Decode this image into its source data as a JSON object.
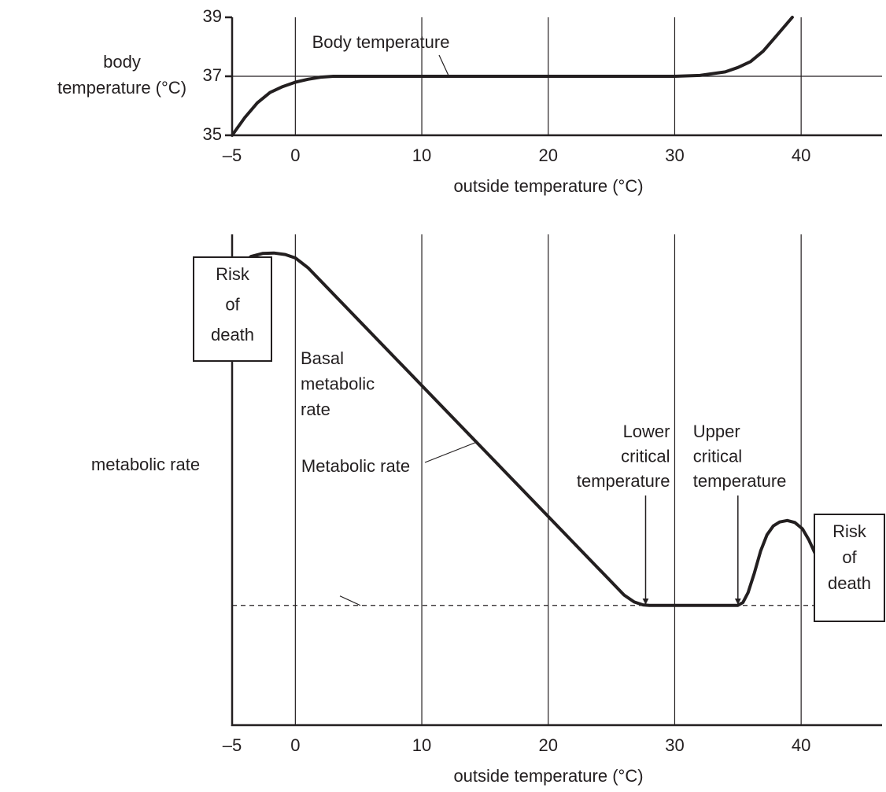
{
  "chart_data": [
    {
      "type": "line",
      "ylabel": [
        "body",
        "temperature (°C)"
      ],
      "xlabel": "outside temperature (°C)",
      "xlim": [
        -5,
        46.4
      ],
      "ylim": [
        35,
        39
      ],
      "xticks": [
        {
          "value": -5,
          "label": "–5"
        },
        0,
        10,
        20,
        30,
        40
      ],
      "yticks": [
        35,
        37,
        39
      ],
      "grid": true,
      "series": [
        {
          "name": "Body temperature",
          "color": "#231f20",
          "x": [
            -5,
            -4,
            -3,
            -2,
            -1,
            0,
            1,
            2,
            3,
            30,
            32,
            34,
            35,
            36,
            37,
            38,
            39.3
          ],
          "values": [
            35,
            35.6,
            36.1,
            36.45,
            36.65,
            36.8,
            36.9,
            36.97,
            37,
            37,
            37.03,
            37.15,
            37.3,
            37.5,
            37.85,
            38.35,
            39
          ]
        }
      ]
    },
    {
      "type": "line",
      "ylabel": "metabolic rate",
      "xlabel": "outside temperature (°C)",
      "xlim": [
        -5,
        46.4
      ],
      "ylim": [
        0,
        100
      ],
      "xticks": [
        {
          "value": -5,
          "label": "–5"
        },
        0,
        10,
        20,
        30,
        40
      ],
      "grid": true,
      "series": [
        {
          "name": "Metabolic rate",
          "color": "#231f20",
          "x": [
            -5,
            -4.2,
            -3.5,
            -2.6,
            -1.7,
            -0.8,
            0,
            1,
            26,
            26.8,
            27.5,
            28,
            35,
            35.4,
            35.8,
            36.3,
            36.8,
            37.3,
            37.8,
            38.3,
            38.9,
            39.5,
            40.1,
            40.6,
            41.1
          ],
          "values": [
            91.7,
            94,
            95.5,
            96.1,
            96.2,
            95.9,
            95.2,
            93.2,
            26.5,
            25.1,
            24.5,
            24.4,
            24.4,
            25,
            27,
            31,
            35.5,
            38.8,
            40.6,
            41.4,
            41.7,
            41.3,
            40,
            37.8,
            35
          ]
        }
      ],
      "basal": {
        "label": [
          "Basal",
          "metabolic",
          "rate"
        ],
        "value": 24.4
      },
      "critical": [
        {
          "label": [
            "Lower",
            "critical",
            "temperature"
          ],
          "x": 27.7
        },
        {
          "label": [
            "Upper",
            "critical",
            "temperature"
          ],
          "x": 35
        }
      ],
      "risk": [
        [
          "Risk",
          "of",
          "death"
        ],
        [
          "Risk",
          "of",
          "death"
        ]
      ]
    }
  ]
}
